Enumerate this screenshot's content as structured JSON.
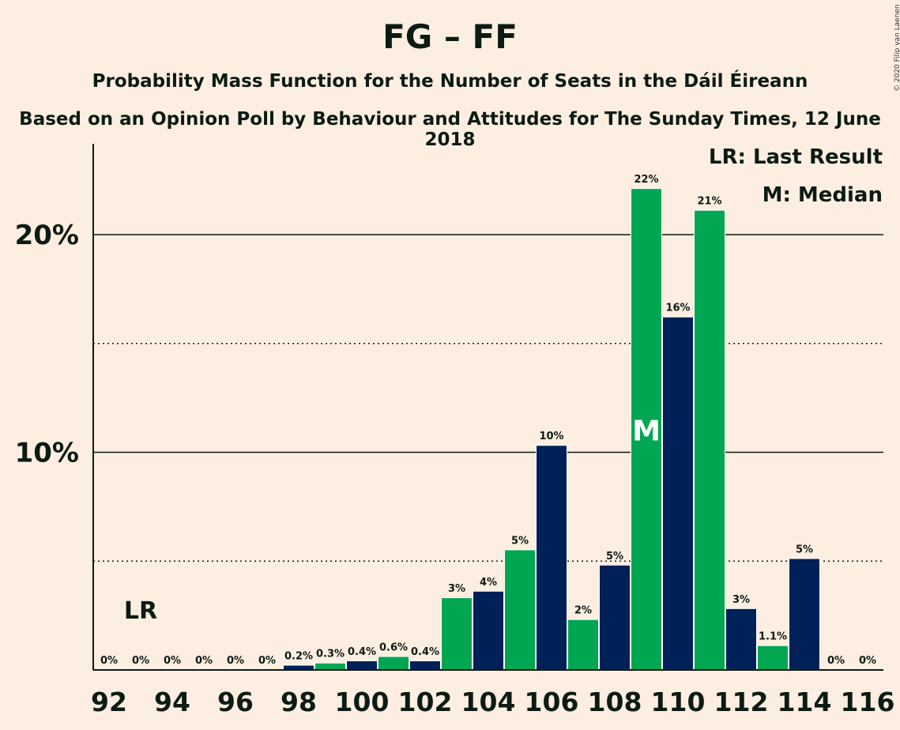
{
  "title": "FG – FF",
  "subtitle": "Probability Mass Function for the Number of Seats in the Dáil Éireann",
  "subtitle2": "Based on an Opinion Poll by Behaviour and Attitudes for The Sunday Times, 12 June 2018",
  "copyright": "© 2020 Filip van Laenen",
  "legend": {
    "last_result": "LR: Last Result",
    "median": "M: Median"
  },
  "colors": {
    "background": "#FDEEE2",
    "green": "#00A651",
    "navy": "#002157",
    "text": "#0d1b12"
  },
  "chart_data": {
    "type": "bar",
    "title": "FG – FF",
    "xlabel": "",
    "ylabel": "",
    "ylim": [
      0,
      24
    ],
    "y_solid_gridlines": [
      10,
      20
    ],
    "y_dotted_gridlines": [
      5,
      15
    ],
    "y_tick_labels": [
      "10%",
      "20%"
    ],
    "x_tick_labels": [
      "92",
      "94",
      "96",
      "98",
      "100",
      "102",
      "104",
      "106",
      "108",
      "110",
      "112",
      "114",
      "116"
    ],
    "categories": [
      92,
      93,
      94,
      95,
      96,
      97,
      98,
      99,
      100,
      101,
      102,
      103,
      104,
      105,
      106,
      107,
      108,
      109,
      110,
      111,
      112,
      113,
      114,
      115,
      116
    ],
    "values": [
      0,
      0,
      0,
      0,
      0,
      0,
      0.2,
      0.3,
      0.4,
      0.6,
      0.4,
      3.3,
      3.6,
      5.5,
      10.3,
      2.3,
      4.8,
      22.1,
      16.2,
      21.1,
      2.8,
      1.1,
      5.1,
      0,
      0
    ],
    "data_labels": [
      "0%",
      "0%",
      "0%",
      "0%",
      "0%",
      "0%",
      "0.2%",
      "0.3%",
      "0.4%",
      "0.6%",
      "0.4%",
      "3%",
      "4%",
      "5%",
      "10%",
      "2%",
      "5%",
      "22%",
      "16%",
      "21%",
      "3%",
      "1.1%",
      "5%",
      "0%",
      "0%"
    ],
    "last_result": {
      "seats": 93,
      "label": "LR"
    },
    "median": {
      "seats": 109,
      "label": "M"
    }
  }
}
